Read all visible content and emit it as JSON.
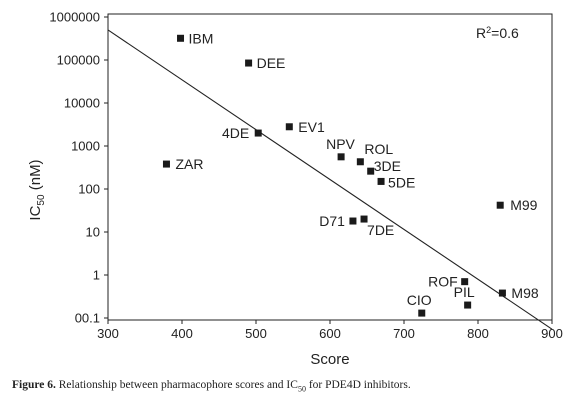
{
  "chart_data": {
    "type": "scatter",
    "xlabel": "Score",
    "ylabel": {
      "main": "IC",
      "sub": "50",
      "suffix": " (nM)"
    },
    "annotation": {
      "text": "R",
      "sup": "2",
      "suffix": "=0.6"
    },
    "xlim": [
      300,
      900
    ],
    "ylim": [
      0.05,
      1000000
    ],
    "y_scale": "log",
    "grid": false,
    "x_ticks": [
      300,
      400,
      500,
      600,
      700,
      800,
      900
    ],
    "x_tick_labels": [
      "300",
      "400",
      "500",
      "600",
      "700",
      "800",
      "900"
    ],
    "y_ticks": [
      0.1,
      1,
      10,
      100,
      1000,
      10000,
      100000,
      1000000
    ],
    "y_tick_labels": [
      "00.1",
      "1",
      "10",
      "100",
      "1000",
      "10000",
      "100000",
      "1000000"
    ],
    "points": [
      {
        "label": "IBM",
        "x": 398,
        "y": 320000
      },
      {
        "label": "DEE",
        "x": 490,
        "y": 85000
      },
      {
        "label": "EV1",
        "x": 545,
        "y": 2800
      },
      {
        "label": "4DE",
        "x": 503,
        "y": 2000
      },
      {
        "label": "NPV",
        "x": 615,
        "y": 560
      },
      {
        "label": "ROL",
        "x": 641,
        "y": 430
      },
      {
        "label": "3DE",
        "x": 655,
        "y": 260
      },
      {
        "label": "5DE",
        "x": 669,
        "y": 150
      },
      {
        "label": "ZAR",
        "x": 379,
        "y": 380
      },
      {
        "label": "D71",
        "x": 631,
        "y": 18
      },
      {
        "label": "7DE",
        "x": 646,
        "y": 20
      },
      {
        "label": "M99",
        "x": 830,
        "y": 42
      },
      {
        "label": "ROF",
        "x": 782,
        "y": 0.7
      },
      {
        "label": "M98",
        "x": 833,
        "y": 0.38
      },
      {
        "label": "CIO",
        "x": 724,
        "y": 0.13
      },
      {
        "label": "PIL",
        "x": 786,
        "y": 0.2
      }
    ],
    "trendline": {
      "x": [
        300,
        900
      ],
      "y": [
        500000,
        0.055
      ]
    }
  },
  "caption": {
    "figure_label": "Figure 6.",
    "text_before": " Relationship between pharmacophore scores and IC",
    "sub": "50",
    "text_after": " for PDE4D inhibitors."
  }
}
